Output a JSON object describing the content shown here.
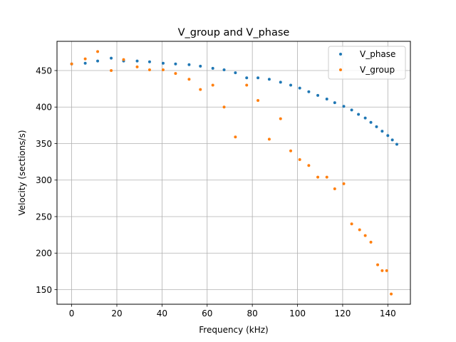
{
  "chart_data": {
    "type": "scatter",
    "title": "V_group and V_phase",
    "xlabel": "Frequency (kHz)",
    "ylabel": "Velocity (sections/s)",
    "xlim": [
      -6.5,
      150
    ],
    "ylim": [
      130,
      490
    ],
    "xticks": [
      0,
      20,
      40,
      60,
      80,
      100,
      120,
      140
    ],
    "yticks": [
      150,
      200,
      250,
      300,
      350,
      400,
      450
    ],
    "grid": true,
    "legend_position": "top-right",
    "series": [
      {
        "name": "V_phase",
        "color": "#1f77b4",
        "x": [
          0,
          6,
          11.5,
          17.5,
          23,
          29,
          34.5,
          40.5,
          46,
          52,
          57,
          62.5,
          67.5,
          72.5,
          77.5,
          82.5,
          87.5,
          92.5,
          97,
          101,
          105,
          109,
          113,
          116.5,
          120.5,
          124,
          127,
          130,
          132.5,
          135,
          137.5,
          140,
          142,
          144
        ],
        "y": [
          459,
          460,
          463,
          467,
          463,
          463,
          462,
          460,
          459,
          458,
          456,
          453,
          451,
          447,
          440,
          440,
          438,
          434,
          430,
          426,
          421,
          416,
          411,
          406,
          401,
          396,
          390,
          385,
          379,
          373,
          367,
          361,
          355,
          349
        ]
      },
      {
        "name": "V_group",
        "color": "#ff7f0e",
        "x": [
          0,
          6,
          11.5,
          17.5,
          23,
          29,
          34.5,
          40.5,
          46,
          52,
          57,
          62.5,
          67.5,
          72.5,
          77.5,
          82.5,
          87.5,
          92.5,
          97,
          101,
          105,
          109,
          113,
          116.5,
          120.5,
          124,
          127.5,
          130,
          132.5,
          135.5,
          137.5,
          139.5,
          141.5
        ],
        "y": [
          459,
          466,
          476,
          450,
          465,
          455,
          451,
          451,
          446,
          438,
          424,
          430,
          400,
          359,
          430,
          409,
          356,
          384,
          340,
          328,
          320,
          304,
          304,
          288,
          295,
          240,
          232,
          224,
          215,
          184,
          176,
          176,
          144
        ]
      }
    ]
  }
}
